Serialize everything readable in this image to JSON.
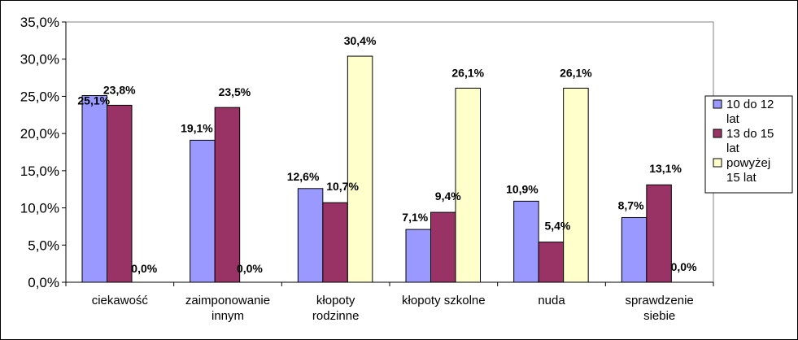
{
  "chart_data": {
    "type": "bar",
    "title": "",
    "xlabel": "",
    "ylabel": "",
    "ylim": [
      0,
      35
    ],
    "y_ticks": [
      "0,0%",
      "5,0%",
      "10,0%",
      "15,0%",
      "20,0%",
      "25,0%",
      "30,0%",
      "35,0%"
    ],
    "y_tick_values": [
      0,
      5,
      10,
      15,
      20,
      25,
      30,
      35
    ],
    "grid": false,
    "legend_position": "right",
    "categories": [
      [
        "ciekawość"
      ],
      [
        "zaimponowanie",
        "innym"
      ],
      [
        "kłopoty",
        "rodzinne"
      ],
      [
        "kłopoty szkolne"
      ],
      [
        "nuda"
      ],
      [
        "sprawdzenie",
        "siebie"
      ]
    ],
    "series": [
      {
        "name": [
          "10 do 12",
          "lat"
        ],
        "color": "#9999FF",
        "values": [
          25.1,
          19.1,
          12.6,
          7.1,
          10.9,
          8.7
        ],
        "labels": [
          "25,1%",
          "19,1%",
          "12,6%",
          "7,1%",
          "10,9%",
          "8,7%"
        ]
      },
      {
        "name": [
          "13 do 15",
          "lat"
        ],
        "color": "#993366",
        "values": [
          23.8,
          23.5,
          10.7,
          9.4,
          5.4,
          13.1
        ],
        "labels": [
          "23,8%",
          "23,5%",
          "10,7%",
          "9,4%",
          "5,4%",
          "13,1%"
        ]
      },
      {
        "name": [
          "powyżej",
          "15 lat"
        ],
        "color": "#FFFFCC",
        "values": [
          0.0,
          0.0,
          30.4,
          26.1,
          26.1,
          0.0
        ],
        "labels": [
          "0,0%",
          "0,0%",
          "30,4%",
          "26,1%",
          "26,1%",
          "0,0%"
        ]
      }
    ]
  }
}
